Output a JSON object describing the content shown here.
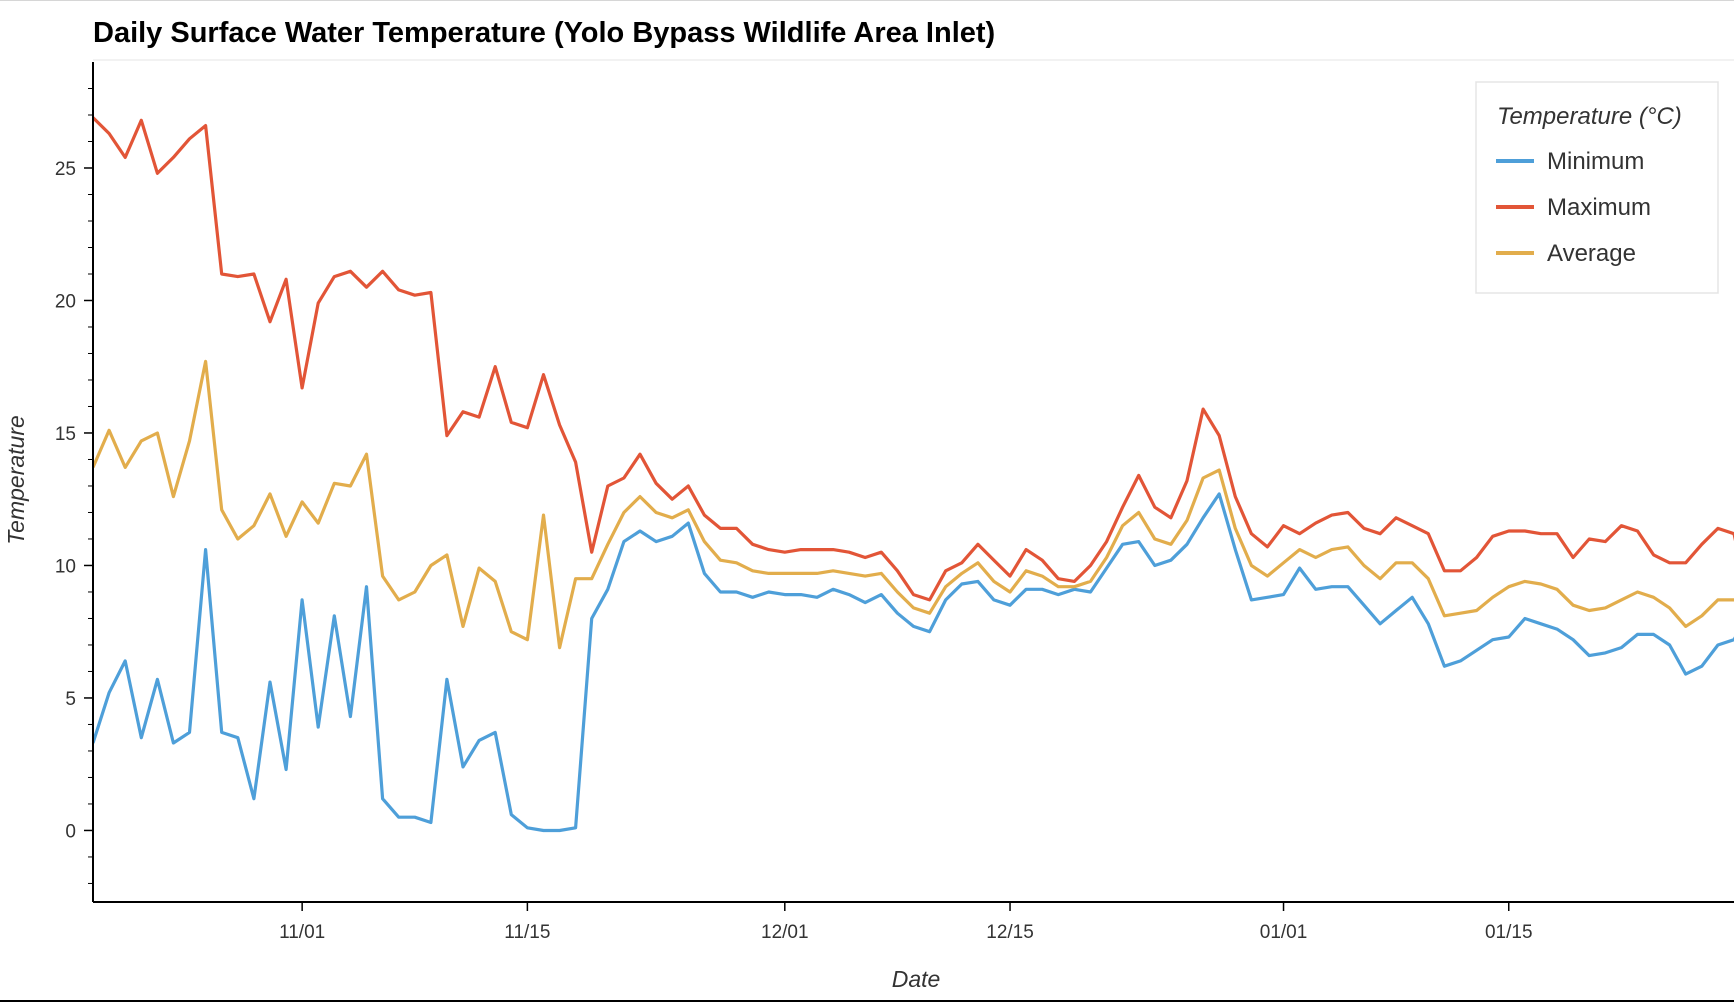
{
  "chart_data": {
    "type": "line",
    "title": "Daily Surface Water Temperature (Yolo Bypass Wildlife Area Inlet)",
    "xlabel": "Date",
    "ylabel": "Temperature",
    "x_tick_labels": [
      "11/01",
      "11/15",
      "12/01",
      "12/15",
      "01/01",
      "01/15"
    ],
    "x_tick_dates": [
      "2019-11-01",
      "2019-11-15",
      "2019-12-01",
      "2019-12-15",
      "2020-01-01",
      "2020-01-15"
    ],
    "y_tick_labels": [
      "0",
      "5",
      "10",
      "15",
      "20",
      "25"
    ],
    "ylim": [
      -2.7,
      29
    ],
    "xlim": [
      "2019-10-19",
      "2020-01-29"
    ],
    "grid": false,
    "legend": {
      "title": "Temperature (°C)",
      "position": "top-right"
    },
    "x_start_date": "2019-10-19",
    "x_step": "1 day",
    "series": [
      {
        "name": "Minimum",
        "color": "#4e9fd9",
        "values": [
          3.3,
          5.2,
          6.4,
          3.5,
          5.7,
          3.3,
          3.7,
          10.6,
          3.7,
          3.5,
          1.2,
          5.6,
          2.3,
          8.7,
          3.9,
          8.1,
          4.3,
          9.2,
          1.2,
          0.5,
          0.5,
          0.3,
          5.7,
          2.4,
          3.4,
          3.7,
          0.6,
          0.1,
          0.0,
          0.0,
          0.1,
          8.0,
          9.1,
          10.9,
          11.3,
          10.9,
          11.1,
          11.6,
          9.7,
          9.0,
          9.0,
          8.8,
          9.0,
          8.9,
          8.9,
          8.8,
          9.1,
          8.9,
          8.6,
          8.9,
          8.2,
          7.7,
          7.5,
          8.7,
          9.3,
          9.4,
          8.7,
          8.5,
          9.1,
          9.1,
          8.9,
          9.1,
          9.0,
          9.9,
          10.8,
          10.9,
          10.0,
          10.2,
          10.8,
          11.8,
          12.7,
          10.6,
          8.7,
          8.8,
          8.9,
          9.9,
          9.1,
          9.2,
          9.2,
          8.5,
          7.8,
          8.3,
          8.8,
          7.8,
          6.2,
          6.4,
          6.8,
          7.2,
          7.3,
          8.0,
          7.8,
          7.6,
          7.2,
          6.6,
          6.7,
          6.9,
          7.4,
          7.4,
          7.0,
          5.9,
          6.2,
          7.0,
          7.2,
          8.3
        ]
      },
      {
        "name": "Maximum",
        "color": "#e25537",
        "values": [
          26.9,
          26.3,
          25.4,
          26.8,
          24.8,
          25.4,
          26.1,
          26.6,
          21.0,
          20.9,
          21.0,
          19.2,
          20.8,
          16.7,
          19.9,
          20.9,
          21.1,
          20.5,
          21.1,
          20.4,
          20.2,
          20.3,
          14.9,
          15.8,
          15.6,
          17.5,
          15.4,
          15.2,
          17.2,
          15.3,
          13.9,
          10.5,
          13.0,
          13.3,
          14.2,
          13.1,
          12.5,
          13.0,
          11.9,
          11.4,
          11.4,
          10.8,
          10.6,
          10.5,
          10.6,
          10.6,
          10.6,
          10.5,
          10.3,
          10.5,
          9.8,
          8.9,
          8.7,
          9.8,
          10.1,
          10.8,
          10.2,
          9.6,
          10.6,
          10.2,
          9.5,
          9.4,
          10.0,
          10.9,
          12.2,
          13.4,
          12.2,
          11.8,
          13.2,
          15.9,
          14.9,
          12.6,
          11.2,
          10.7,
          11.5,
          11.2,
          11.6,
          11.9,
          12.0,
          11.4,
          11.2,
          11.8,
          11.5,
          11.2,
          9.8,
          9.8,
          10.3,
          11.1,
          11.3,
          11.3,
          11.2,
          11.2,
          10.3,
          11.0,
          10.9,
          11.5,
          11.3,
          10.4,
          10.1,
          10.1,
          10.8,
          11.4,
          11.2,
          8.4
        ]
      },
      {
        "name": "Average",
        "color": "#e2ad4c",
        "values": [
          13.7,
          15.1,
          13.7,
          14.7,
          15.0,
          12.6,
          14.7,
          17.7,
          12.1,
          11.0,
          11.5,
          12.7,
          11.1,
          12.4,
          11.6,
          13.1,
          13.0,
          14.2,
          9.6,
          8.7,
          9.0,
          10.0,
          10.4,
          7.7,
          9.9,
          9.4,
          7.5,
          7.2,
          11.9,
          6.9,
          9.5,
          9.5,
          10.8,
          12.0,
          12.6,
          12.0,
          11.8,
          12.1,
          10.9,
          10.2,
          10.1,
          9.8,
          9.7,
          9.7,
          9.7,
          9.7,
          9.8,
          9.7,
          9.6,
          9.7,
          9.0,
          8.4,
          8.2,
          9.2,
          9.7,
          10.1,
          9.4,
          9.0,
          9.8,
          9.6,
          9.2,
          9.2,
          9.4,
          10.3,
          11.5,
          12.0,
          11.0,
          10.8,
          11.7,
          13.3,
          13.6,
          11.4,
          10.0,
          9.6,
          10.1,
          10.6,
          10.3,
          10.6,
          10.7,
          10.0,
          9.5,
          10.1,
          10.1,
          9.5,
          8.1,
          8.2,
          8.3,
          8.8,
          9.2,
          9.4,
          9.3,
          9.1,
          8.5,
          8.3,
          8.4,
          8.7,
          9.0,
          8.8,
          8.4,
          7.7,
          8.1,
          8.7,
          8.7,
          8.5
        ]
      }
    ]
  }
}
